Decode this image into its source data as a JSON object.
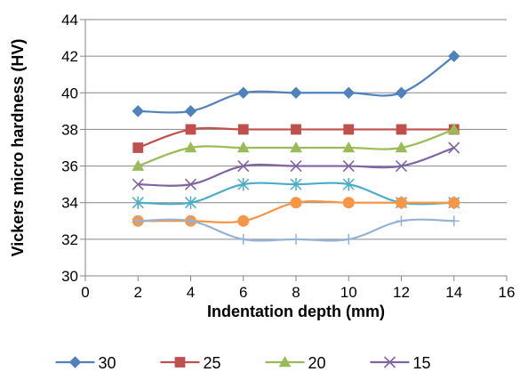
{
  "chart_data": {
    "type": "line",
    "title": "",
    "xlabel": "Indentation depth (mm)",
    "ylabel": "Vickers micro hardness (HV)",
    "xlim": [
      0,
      16
    ],
    "ylim": [
      30,
      44
    ],
    "x_ticks": [
      "0",
      "2",
      "4",
      "6",
      "8",
      "10",
      "12",
      "14",
      "16"
    ],
    "y_ticks": [
      "30",
      "32",
      "34",
      "36",
      "38",
      "40",
      "42",
      "44"
    ],
    "grid": "horizontal",
    "smooth": true,
    "legend_position": "bottom",
    "x": [
      2,
      4,
      6,
      8,
      10,
      12,
      14
    ],
    "series": [
      {
        "name": "30",
        "color": "#4F81BD",
        "marker": "diamond",
        "values": [
          39,
          39,
          40,
          40,
          40,
          40,
          42
        ]
      },
      {
        "name": "25",
        "color": "#C0504D",
        "marker": "square",
        "values": [
          37,
          38,
          38,
          38,
          38,
          38,
          38
        ]
      },
      {
        "name": "20",
        "color": "#9BBB59",
        "marker": "triangle",
        "values": [
          36,
          37,
          37,
          37,
          37,
          37,
          38
        ]
      },
      {
        "name": "15",
        "color": "#8064A2",
        "marker": "x",
        "values": [
          35,
          35,
          36,
          36,
          36,
          36,
          37
        ]
      },
      {
        "name": "",
        "color": "#4BACC6",
        "marker": "star",
        "values": [
          34,
          34,
          35,
          35,
          35,
          34,
          34
        ]
      },
      {
        "name": "",
        "color": "#F79646",
        "marker": "circle",
        "values": [
          33,
          33,
          33,
          34,
          34,
          34,
          34
        ]
      },
      {
        "name": "",
        "color": "#95B3D7",
        "marker": "plus",
        "values": [
          33,
          33,
          32,
          32,
          32,
          33,
          33
        ]
      }
    ]
  }
}
